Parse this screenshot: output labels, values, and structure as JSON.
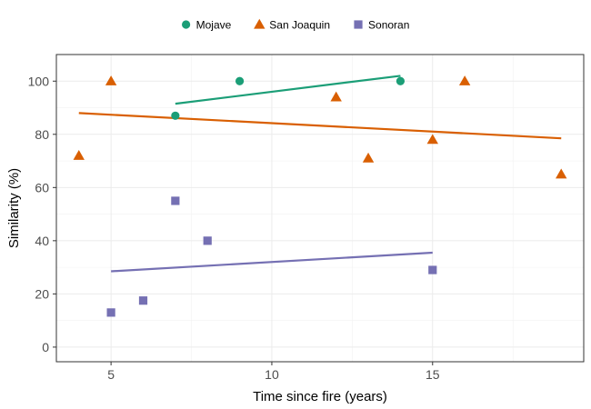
{
  "chart_data": {
    "type": "scatter",
    "title": "",
    "xlabel": "Time since fire (years)",
    "ylabel": "Similarity (%)",
    "xlim": [
      3.3,
      19.7
    ],
    "ylim": [
      -5.5,
      110
    ],
    "x_ticks": [
      5,
      10,
      15
    ],
    "y_ticks": [
      0,
      20,
      40,
      60,
      80,
      100
    ],
    "grid": true,
    "legend_position": "top",
    "series": [
      {
        "name": "Mojave",
        "color": "#1b9e77",
        "marker": "circle",
        "points": [
          [
            7,
            87
          ],
          [
            9,
            100
          ],
          [
            14,
            100
          ]
        ],
        "trend": [
          [
            7,
            91.5
          ],
          [
            14,
            102
          ]
        ]
      },
      {
        "name": "San Joaquin",
        "color": "#d95f02",
        "marker": "triangle",
        "points": [
          [
            4,
            72
          ],
          [
            5,
            100
          ],
          [
            12,
            94
          ],
          [
            13,
            71
          ],
          [
            15,
            78
          ],
          [
            16,
            100
          ],
          [
            19,
            65
          ]
        ],
        "trend": [
          [
            4,
            88
          ],
          [
            19,
            78.5
          ]
        ]
      },
      {
        "name": "Sonoran",
        "color": "#7570b3",
        "marker": "square",
        "points": [
          [
            5,
            13
          ],
          [
            6,
            17.5
          ],
          [
            7,
            55
          ],
          [
            8,
            40
          ],
          [
            15,
            29
          ]
        ],
        "trend": [
          [
            5,
            28.5
          ],
          [
            15,
            35.5
          ]
        ]
      }
    ]
  }
}
